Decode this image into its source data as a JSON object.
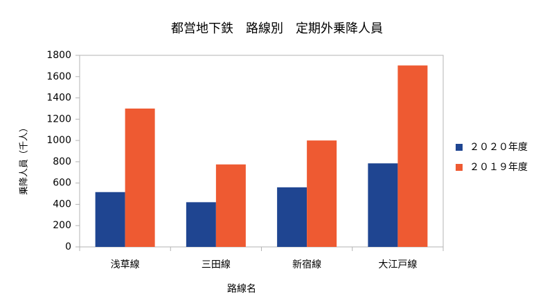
{
  "chart_data": {
    "type": "bar",
    "title": "都営地下鉄　路線別　定期外乗降人員",
    "x_label": "路線名",
    "y_label": "乗降人員（千人）",
    "categories": [
      "浅草線",
      "三田線",
      "新宿線",
      "大江戸線"
    ],
    "series": [
      {
        "name": "２０２０年度",
        "color": "#1f4591",
        "values": [
          515,
          420,
          560,
          785
        ]
      },
      {
        "name": "２０１９年度",
        "color": "#ee5a32",
        "values": [
          1300,
          775,
          1000,
          1705
        ]
      }
    ],
    "ylim": [
      0,
      1800
    ],
    "yticks": [
      0,
      200,
      400,
      600,
      800,
      1000,
      1200,
      1400,
      1600,
      1800
    ],
    "grid": false,
    "legend": "right"
  }
}
